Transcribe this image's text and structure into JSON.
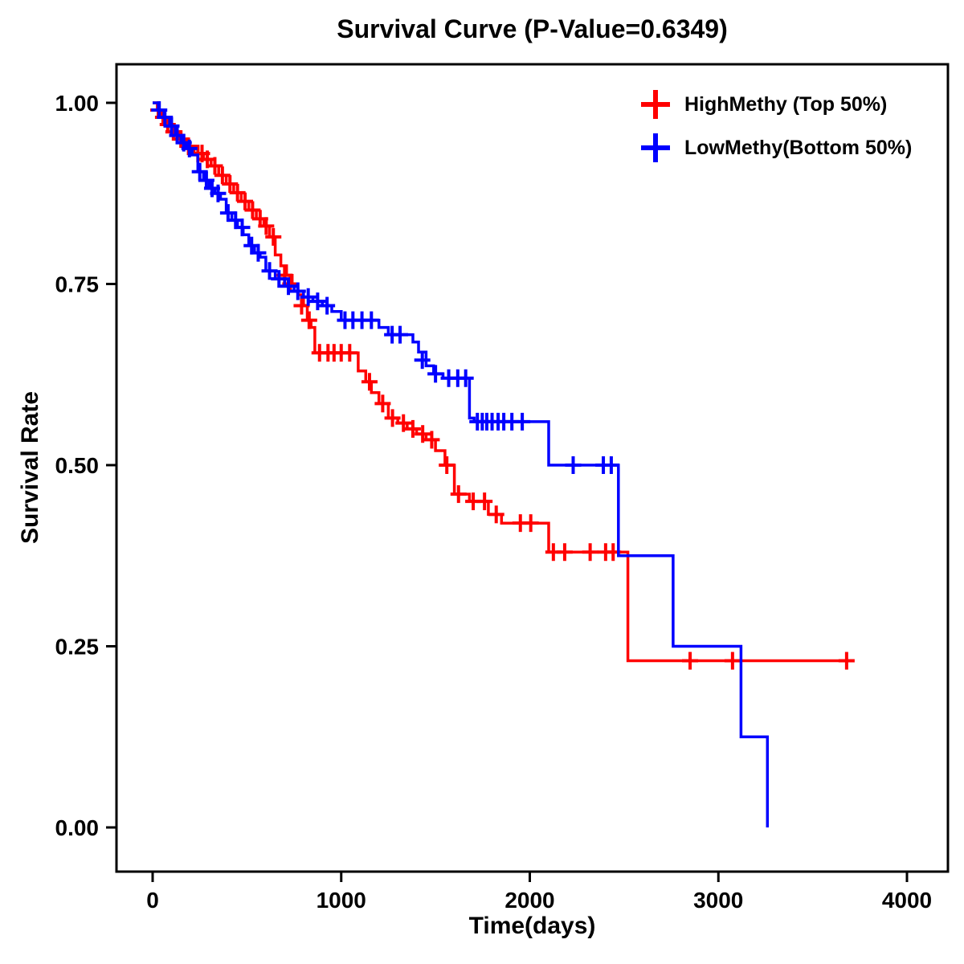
{
  "chart_data": {
    "type": "line",
    "subtype": "kaplan-meier-step",
    "title": "Survival Curve (P-Value=0.6349)",
    "p_value": "0.6349",
    "xlabel": "Time(days)",
    "ylabel": "Survival Rate",
    "xlim": [
      0,
      4000
    ],
    "ylim": [
      0.0,
      1.0
    ],
    "xticks": [
      0,
      1000,
      2000,
      3000,
      4000
    ],
    "xtick_labels": [
      "0",
      "1000",
      "2000",
      "3000",
      "4000"
    ],
    "yticks": [
      0.0,
      0.25,
      0.5,
      0.75,
      1.0
    ],
    "ytick_labels": [
      "0.00",
      "0.25",
      "0.50",
      "0.75",
      "1.00"
    ],
    "grid": false,
    "legend_position": "top-right-inside",
    "frame_color": "#000000",
    "series": [
      {
        "name": "HighMethy (Top 50%)",
        "color": "#ff0000",
        "steps": [
          [
            0,
            1.0
          ],
          [
            25,
            0.99
          ],
          [
            50,
            0.98
          ],
          [
            75,
            0.97
          ],
          [
            100,
            0.96
          ],
          [
            140,
            0.95
          ],
          [
            180,
            0.94
          ],
          [
            220,
            0.93
          ],
          [
            270,
            0.922
          ],
          [
            310,
            0.913
          ],
          [
            350,
            0.9
          ],
          [
            390,
            0.888
          ],
          [
            430,
            0.876
          ],
          [
            470,
            0.864
          ],
          [
            510,
            0.852
          ],
          [
            550,
            0.84
          ],
          [
            590,
            0.83
          ],
          [
            620,
            0.815
          ],
          [
            650,
            0.79
          ],
          [
            680,
            0.775
          ],
          [
            710,
            0.762
          ],
          [
            740,
            0.75
          ],
          [
            770,
            0.735
          ],
          [
            800,
            0.72
          ],
          [
            820,
            0.7
          ],
          [
            840,
            0.69
          ],
          [
            860,
            0.655
          ],
          [
            1090,
            0.63
          ],
          [
            1130,
            0.615
          ],
          [
            1160,
            0.6
          ],
          [
            1200,
            0.585
          ],
          [
            1250,
            0.565
          ],
          [
            1300,
            0.558
          ],
          [
            1350,
            0.55
          ],
          [
            1400,
            0.543
          ],
          [
            1450,
            0.535
          ],
          [
            1500,
            0.52
          ],
          [
            1550,
            0.5
          ],
          [
            1600,
            0.46
          ],
          [
            1680,
            0.45
          ],
          [
            1780,
            0.432
          ],
          [
            1850,
            0.42
          ],
          [
            2100,
            0.38
          ],
          [
            2520,
            0.23
          ],
          [
            3700,
            0.23
          ]
        ],
        "censors": [
          [
            30,
            0.99
          ],
          [
            55,
            0.98
          ],
          [
            80,
            0.97
          ],
          [
            110,
            0.96
          ],
          [
            150,
            0.95
          ],
          [
            190,
            0.94
          ],
          [
            240,
            0.93
          ],
          [
            262,
            0.93
          ],
          [
            290,
            0.922
          ],
          [
            330,
            0.913
          ],
          [
            370,
            0.9
          ],
          [
            410,
            0.888
          ],
          [
            450,
            0.876
          ],
          [
            490,
            0.864
          ],
          [
            530,
            0.852
          ],
          [
            570,
            0.84
          ],
          [
            602,
            0.83
          ],
          [
            640,
            0.815
          ],
          [
            700,
            0.762
          ],
          [
            730,
            0.75
          ],
          [
            790,
            0.72
          ],
          [
            830,
            0.7
          ],
          [
            885,
            0.655
          ],
          [
            930,
            0.655
          ],
          [
            962,
            0.655
          ],
          [
            1000,
            0.655
          ],
          [
            1045,
            0.655
          ],
          [
            1150,
            0.615
          ],
          [
            1220,
            0.585
          ],
          [
            1272,
            0.565
          ],
          [
            1330,
            0.558
          ],
          [
            1380,
            0.55
          ],
          [
            1432,
            0.543
          ],
          [
            1480,
            0.535
          ],
          [
            1560,
            0.5
          ],
          [
            1622,
            0.46
          ],
          [
            1700,
            0.45
          ],
          [
            1760,
            0.45
          ],
          [
            1822,
            0.432
          ],
          [
            1950,
            0.42
          ],
          [
            2005,
            0.42
          ],
          [
            2125,
            0.38
          ],
          [
            2185,
            0.38
          ],
          [
            2320,
            0.38
          ],
          [
            2402,
            0.38
          ],
          [
            2442,
            0.38
          ],
          [
            2850,
            0.23
          ],
          [
            3075,
            0.23
          ],
          [
            3680,
            0.23
          ]
        ]
      },
      {
        "name": "LowMethy(Bottom 50%)",
        "color": "#0000ff",
        "steps": [
          [
            0,
            1.0
          ],
          [
            30,
            0.99
          ],
          [
            60,
            0.98
          ],
          [
            90,
            0.968
          ],
          [
            120,
            0.955
          ],
          [
            150,
            0.945
          ],
          [
            180,
            0.937
          ],
          [
            210,
            0.928
          ],
          [
            240,
            0.905
          ],
          [
            270,
            0.893
          ],
          [
            300,
            0.882
          ],
          [
            330,
            0.875
          ],
          [
            360,
            0.867
          ],
          [
            390,
            0.848
          ],
          [
            420,
            0.838
          ],
          [
            450,
            0.828
          ],
          [
            480,
            0.818
          ],
          [
            510,
            0.803
          ],
          [
            540,
            0.793
          ],
          [
            570,
            0.787
          ],
          [
            600,
            0.768
          ],
          [
            650,
            0.757
          ],
          [
            700,
            0.747
          ],
          [
            750,
            0.74
          ],
          [
            800,
            0.732
          ],
          [
            850,
            0.726
          ],
          [
            900,
            0.72
          ],
          [
            950,
            0.712
          ],
          [
            1000,
            0.7
          ],
          [
            1200,
            0.69
          ],
          [
            1250,
            0.68
          ],
          [
            1380,
            0.67
          ],
          [
            1410,
            0.656
          ],
          [
            1450,
            0.637
          ],
          [
            1490,
            0.626
          ],
          [
            1540,
            0.62
          ],
          [
            1680,
            0.565
          ],
          [
            1705,
            0.56
          ],
          [
            2100,
            0.5
          ],
          [
            2470,
            0.375
          ],
          [
            2760,
            0.25
          ],
          [
            3120,
            0.125
          ],
          [
            3260,
            0.0
          ]
        ],
        "censors": [
          [
            35,
            0.99
          ],
          [
            65,
            0.98
          ],
          [
            100,
            0.968
          ],
          [
            130,
            0.955
          ],
          [
            165,
            0.945
          ],
          [
            195,
            0.937
          ],
          [
            250,
            0.905
          ],
          [
            285,
            0.893
          ],
          [
            315,
            0.882
          ],
          [
            347,
            0.875
          ],
          [
            400,
            0.848
          ],
          [
            440,
            0.838
          ],
          [
            475,
            0.828
          ],
          [
            525,
            0.803
          ],
          [
            560,
            0.793
          ],
          [
            620,
            0.768
          ],
          [
            670,
            0.757
          ],
          [
            720,
            0.747
          ],
          [
            770,
            0.74
          ],
          [
            825,
            0.732
          ],
          [
            875,
            0.726
          ],
          [
            925,
            0.72
          ],
          [
            1020,
            0.7
          ],
          [
            1062,
            0.7
          ],
          [
            1110,
            0.7
          ],
          [
            1160,
            0.7
          ],
          [
            1270,
            0.68
          ],
          [
            1312,
            0.68
          ],
          [
            1430,
            0.645
          ],
          [
            1500,
            0.626
          ],
          [
            1570,
            0.62
          ],
          [
            1618,
            0.62
          ],
          [
            1660,
            0.62
          ],
          [
            1722,
            0.56
          ],
          [
            1748,
            0.56
          ],
          [
            1772,
            0.56
          ],
          [
            1800,
            0.56
          ],
          [
            1832,
            0.56
          ],
          [
            1862,
            0.56
          ],
          [
            1905,
            0.56
          ],
          [
            1960,
            0.56
          ],
          [
            2230,
            0.5
          ],
          [
            2390,
            0.5
          ],
          [
            2432,
            0.5
          ]
        ]
      }
    ]
  }
}
